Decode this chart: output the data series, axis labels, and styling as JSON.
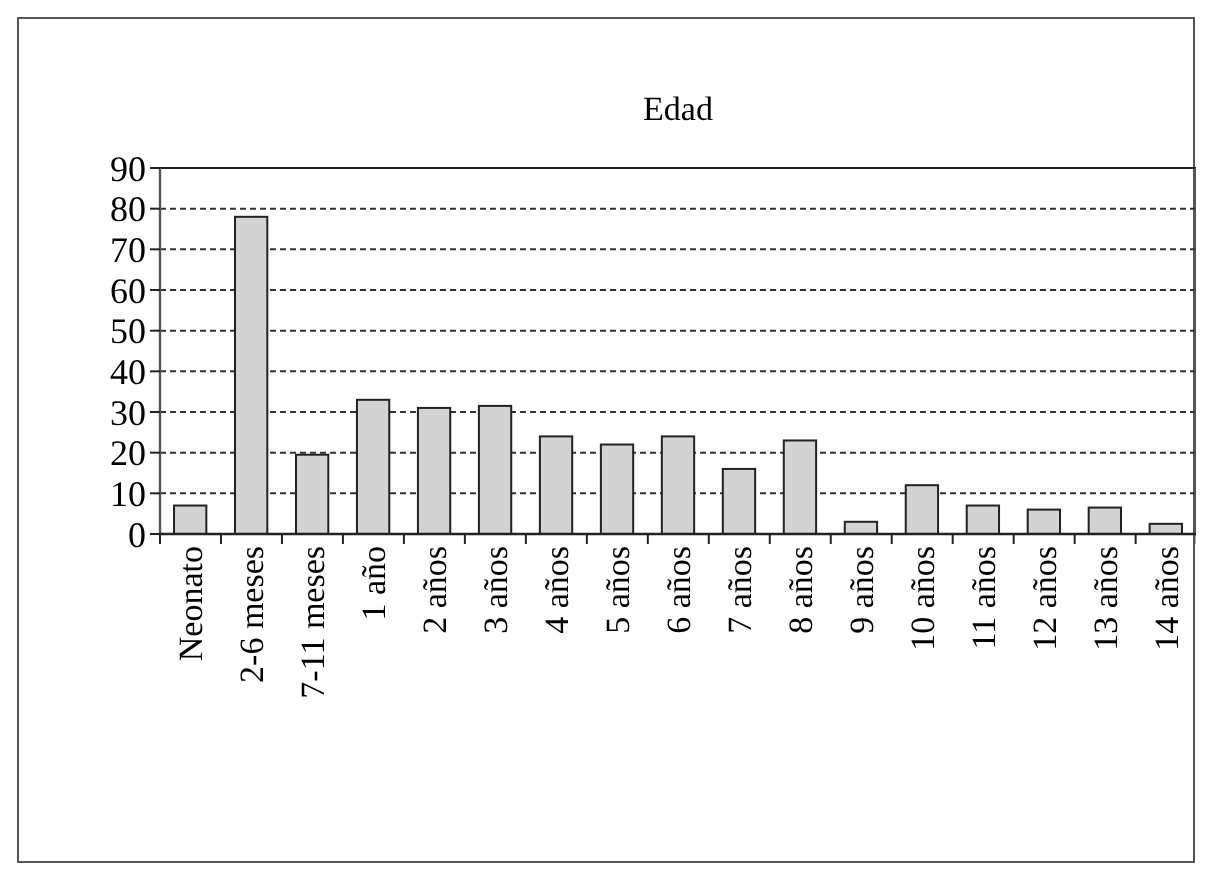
{
  "chart_data": {
    "type": "bar",
    "title": "Edad",
    "categories": [
      "Neonato",
      "2-6 meses",
      "7-11 meses",
      "1 año",
      "2 años",
      "3 años",
      "4 años",
      "5 años",
      "6 años",
      "7 años",
      "8 años",
      "9 años",
      "10 años",
      "11 años",
      "12 años",
      "13 años",
      "14 años"
    ],
    "values": [
      7,
      78,
      19.5,
      33,
      31,
      31.5,
      24,
      22,
      24,
      16,
      23,
      3,
      12,
      7,
      6,
      6.5,
      2.5
    ],
    "color": "#d3d3d3",
    "ylim": [
      0,
      90
    ],
    "yticks": [
      0,
      10,
      20,
      30,
      40,
      50,
      60,
      70,
      80,
      90
    ],
    "grid": "y"
  }
}
